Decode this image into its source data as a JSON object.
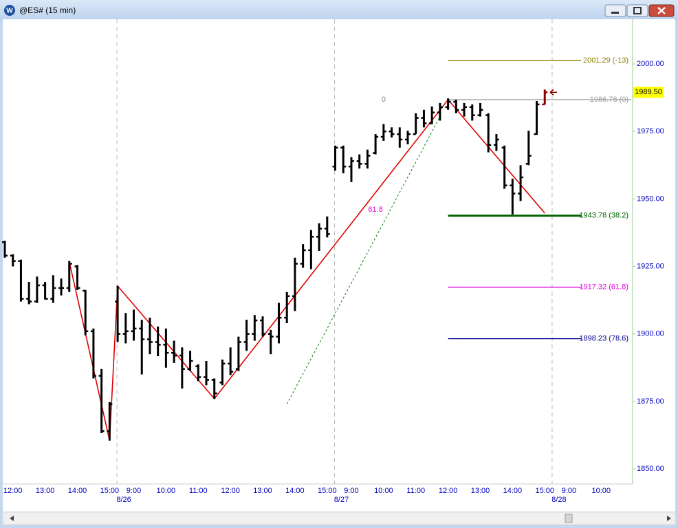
{
  "window": {
    "title": "@ES# (15 min)"
  },
  "chart_data": {
    "type": "ohlc",
    "categories": [
      null,
      "12:00",
      null,
      null,
      null,
      "13:00",
      null,
      null,
      null,
      "14:00",
      null,
      null,
      null,
      "15:00",
      null,
      null,
      "9:00",
      null,
      null,
      null,
      "10:00",
      null,
      null,
      null,
      "11:00",
      null,
      null,
      null,
      "12:00",
      null,
      null,
      null,
      "13:00",
      null,
      null,
      null,
      "14:00",
      null,
      null,
      null,
      "15:00",
      null,
      null,
      "9:00",
      null,
      null,
      null,
      "10:00",
      null,
      null,
      null,
      "11:00",
      null,
      null,
      null,
      "12:00",
      null,
      null,
      null,
      "13:00",
      null,
      null,
      null,
      "14:00",
      null,
      null,
      null,
      "15:00",
      null,
      null,
      "9:00",
      null,
      null,
      null,
      "10:00",
      null,
      null,
      null
    ],
    "day_labels": [
      "8/26",
      "8/27",
      "8/28"
    ],
    "open": [
      1934,
      1929,
      1927,
      1913,
      1912,
      1918,
      1913,
      1917,
      1917,
      1925,
      1916,
      1901,
      1884.5,
      1864,
      1912,
      1900,
      1901,
      1902,
      1898,
      1897,
      1896,
      1893,
      1892,
      1887,
      1888,
      1884,
      1883,
      1882,
      1889,
      1887,
      1897,
      1900,
      1905,
      1900,
      1899,
      1906,
      1914,
      1926,
      1931,
      1936,
      1939,
      1962,
      1969,
      1962,
      1964,
      1963,
      1967,
      1973,
      1975,
      1974,
      1972,
      1974,
      1980,
      1978,
      1982,
      1984,
      1986,
      1983,
      1984,
      1981,
      1981,
      1970,
      1969,
      1955,
      1952,
      1963,
      1974,
      1985,
      null,
      null,
      null,
      null,
      null,
      null,
      null,
      null,
      null,
      null
    ],
    "high": [
      1934.5,
      1929.5,
      1927.5,
      1919.25,
      1921.25,
      1919.25,
      1921.75,
      1920.5,
      1927,
      1925.5,
      1916.25,
      1902,
      1887,
      1874.75,
      1917.75,
      1907.75,
      1909,
      1905.25,
      1906,
      1902.75,
      1902,
      1897.5,
      1895,
      1893.75,
      1888.75,
      1890,
      1883.5,
      1890.5,
      1895,
      1899,
      1905.25,
      1907,
      1906.5,
      1901.5,
      1911.5,
      1915.5,
      1928.25,
      1933.25,
      1938.5,
      1941,
      1943.5,
      1969.75,
      1969.75,
      1965.5,
      1966.5,
      1968.25,
      1974,
      1977.75,
      1976.5,
      1976.5,
      1975.25,
      1981.75,
      1983,
      1984.25,
      1985.5,
      1987.25,
      1986.75,
      1985.5,
      1985,
      1985.5,
      1981.75,
      1974,
      1969.75,
      1957.5,
      1962.5,
      1975.25,
      1986.25,
      1990.5,
      null,
      null,
      null,
      null,
      null,
      null,
      null,
      null,
      null,
      null
    ],
    "low": [
      1928.25,
      1925,
      1912,
      1911,
      1911.5,
      1912.75,
      1911.5,
      1914.25,
      1915.5,
      1916.25,
      1899.5,
      1883.5,
      1863.25,
      1860.5,
      1897,
      1896.5,
      1897.5,
      1885,
      1892.5,
      1891.75,
      1887.5,
      1889.25,
      1879.75,
      1886.25,
      1882.5,
      1881,
      1876,
      1881,
      1884.75,
      1886.25,
      1893.75,
      1897.5,
      1899,
      1892.5,
      1896.5,
      1904,
      1908.5,
      1924.5,
      1924,
      1930.75,
      1935.75,
      1960.5,
      1959.5,
      1956.25,
      1961.25,
      1961.25,
      1966.5,
      1971.5,
      1972.75,
      1969,
      1970.25,
      1974,
      1976.5,
      1977.75,
      1979,
      1983,
      1981.75,
      1980.5,
      1979,
      1980.5,
      1967.25,
      1967.75,
      1953.75,
      1944.25,
      1949.25,
      1962.5,
      1973.75,
      1985,
      null,
      null,
      null,
      null,
      null,
      null,
      null,
      null,
      null,
      null
    ],
    "close": [
      1929,
      1927,
      1913,
      1912,
      1918,
      1913,
      1917,
      1917,
      1926,
      1917,
      1901,
      1884.5,
      1864,
      1874,
      1900,
      1901,
      1902,
      1898,
      1897,
      1896,
      1893,
      1892,
      1887,
      1890,
      1884,
      1883,
      1878,
      1889,
      1886,
      1897,
      1900,
      1905,
      1900,
      1899,
      1906,
      1914,
      1926,
      1931,
      1936,
      1939,
      1937,
      1969,
      1962,
      1964,
      1963,
      1966,
      1973,
      1975,
      1974,
      1972,
      1974,
      1980,
      1978,
      1982,
      1984,
      1986,
      1983,
      1984,
      1981,
      1983,
      1970,
      1972,
      1955,
      1952,
      1958,
      1966,
      1985,
      1989.5,
      null,
      null,
      null,
      null,
      null,
      null,
      null,
      null,
      null,
      null
    ],
    "bar_color": "#000000",
    "last_bar_color": "#8b0000",
    "last_price": {
      "value": 1989.5,
      "label": "1989.50"
    },
    "zigzag": {
      "color": "#e00000",
      "x": [
        8,
        13,
        14,
        26,
        55,
        67
      ],
      "values": [
        1926.75,
        1860.5,
        1917.75,
        1876,
        1986.75,
        1944.75
      ]
    },
    "trend": {
      "color": "#008000",
      "x": [
        35,
        54
      ],
      "values": [
        1874,
        1980.5
      ]
    },
    "fib_levels": [
      {
        "value": 2001.29,
        "label": "2001.29 (-13)",
        "color": "#8b8000"
      },
      {
        "value": 1986.78,
        "label": "1986.78 (0)",
        "color": "#a0a0a0"
      },
      {
        "value": 1943.78,
        "label": "1943.78 (38.2)",
        "color": "#006400"
      },
      {
        "value": 1917.32,
        "label": "1917.32 (61.8)",
        "color": "#e000e0"
      },
      {
        "value": 1898.23,
        "label": "1898.23 (78.6)",
        "color": "#000090"
      }
    ],
    "annotations": [
      {
        "text": "0",
        "x": 47,
        "y": 1986.78,
        "color": "#808080"
      },
      {
        "text": "61.8",
        "x": 46,
        "y": 1946,
        "color": "#e000e0"
      }
    ],
    "ylim": [
      1844.67,
      2016.55
    ],
    "yticks": [
      {
        "value": 1850,
        "label": "1850.00"
      },
      {
        "value": 1875,
        "label": "1875.00"
      },
      {
        "value": 1900,
        "label": "1900.00"
      },
      {
        "value": 1925,
        "label": "1925.00"
      },
      {
        "value": 1950,
        "label": "1950.00"
      },
      {
        "value": 1975,
        "label": "1975.00"
      },
      {
        "value": 2000,
        "label": "2000.00"
      }
    ],
    "axis_color": "#0000c0"
  }
}
